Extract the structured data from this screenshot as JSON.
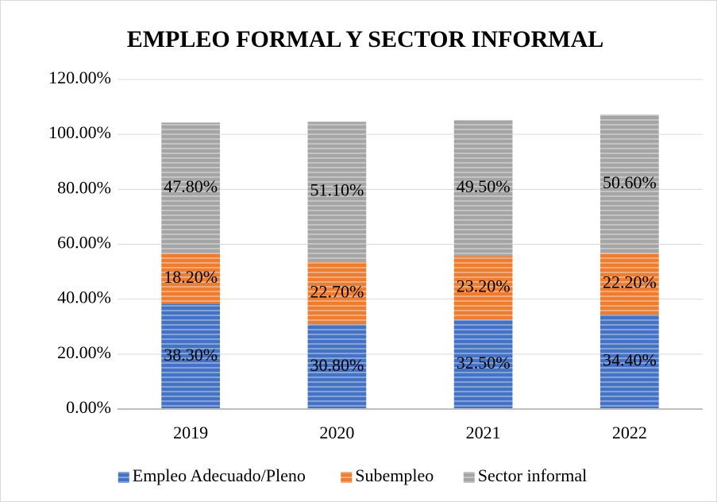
{
  "chart_data": {
    "type": "stacked_bar",
    "title": "EMPLEO FORMAL Y SECTOR INFORMAL",
    "categories": [
      "2019",
      "2020",
      "2021",
      "2022"
    ],
    "series": [
      {
        "name": "Empleo Adecuado/Pleno",
        "color": "#4472c4",
        "values": [
          38.3,
          30.8,
          32.5,
          34.4
        ],
        "value_labels": [
          "38.30%",
          "30.80%",
          "32.50%",
          "34.40%"
        ]
      },
      {
        "name": "Subempleo",
        "color": "#ed7d31",
        "values": [
          18.2,
          22.7,
          23.2,
          22.2
        ],
        "value_labels": [
          "18.20%",
          "22.70%",
          "23.20%",
          "22.20%"
        ]
      },
      {
        "name": "Sector informal",
        "color": "#a5a5a5",
        "values": [
          47.8,
          51.1,
          49.5,
          50.6
        ],
        "value_labels": [
          "47.80%",
          "51.10%",
          "49.50%",
          "50.60%"
        ]
      }
    ],
    "ylim": [
      0,
      120
    ],
    "yticks": [
      {
        "value": 0,
        "label": "0.00%"
      },
      {
        "value": 20,
        "label": "20.00%"
      },
      {
        "value": 40,
        "label": "40.00%"
      },
      {
        "value": 60,
        "label": "60.00%"
      },
      {
        "value": 80,
        "label": "80.00%"
      },
      {
        "value": 100,
        "label": "100.00%"
      },
      {
        "value": 120,
        "label": "120.00%"
      }
    ],
    "grid": true,
    "legend": "bottom"
  }
}
